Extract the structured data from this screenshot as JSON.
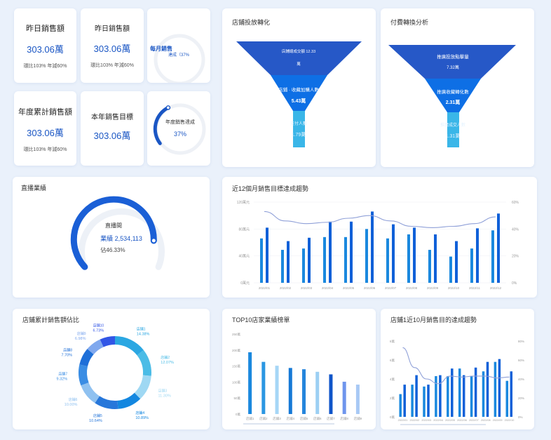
{
  "kpis": {
    "yesterday_sales": {
      "title": "昨日銷售額",
      "value": "303.06萬",
      "sub": "環比103% 年減60%"
    },
    "yesterday_sales2": {
      "title": "昨日銷售額",
      "value": "303.06萬",
      "sub": "環比103% 年減60%"
    },
    "monthly_sales": {
      "title": "每月銷售",
      "sub": "達成（37%"
    },
    "ytd_sales": {
      "title": "年度累計銷售額",
      "value": "303.06萬",
      "sub": "環比103% 年減60%"
    },
    "year_target": {
      "title": "本年銷售目標",
      "value": "303.06萬"
    },
    "year_achieve": {
      "title": "年度銷售達成",
      "value": "37%"
    }
  },
  "funnel1": {
    "title": "店鋪投放轉化",
    "l1a": "店鋪總成交額 12.33",
    "l1b": "萬",
    "l2a": "店鋪 · 收藏加購人數",
    "l2b": "5.43萬",
    "l3a": "支付人數",
    "l3b": "1.79萬"
  },
  "funnel2": {
    "title": "付費轉換分析",
    "l1a": "推廣投放點擊量",
    "l1b": "7.32萬",
    "l2a": "推廣收藏轉化數",
    "l2b": "2.31萬",
    "l3a": "推廣成交人數",
    "l3b": "1.31萬"
  },
  "live": {
    "title": "直播業績",
    "center_title": "直播間",
    "perf": "業績 2,534,113",
    "pct": "佔46.33%"
  },
  "trend12": {
    "title": "近12個月銷售目標達成趨勢"
  },
  "pie": {
    "title": "店鋪累計銷售額佔比"
  },
  "top10": {
    "title": "TOP10店家業績榜單"
  },
  "trend10": {
    "title": "店鋪1近10月銷售目的達成趨勢"
  },
  "chart_data": [
    {
      "type": "bar",
      "title": "近12個月銷售目標達成趨勢",
      "categories": [
        "2022/01",
        "2022/02",
        "2022/03",
        "2022/04",
        "2022/05",
        "2022/06",
        "2022/07",
        "2022/08",
        "2022/09",
        "2022/10",
        "2022/11",
        "2022/12"
      ],
      "y_ticks": [
        "0萬元",
        "40萬元",
        "80萬元",
        "120萬元"
      ],
      "y2_ticks": [
        "0%",
        "20%",
        "40%",
        "60%"
      ],
      "ylim": [
        0,
        120
      ],
      "y2lim": [
        0,
        60
      ],
      "series": [
        {
          "values": [
            66,
            49,
            51,
            68,
            68,
            80,
            66,
            72,
            49,
            39,
            51,
            78
          ]
        },
        {
          "values": [
            82,
            62,
            67,
            91,
            91,
            106,
            87,
            82,
            72,
            62,
            81,
            103
          ]
        },
        {
          "type": "line",
          "values": [
            53,
            46,
            44,
            45,
            48,
            50,
            46,
            42,
            41,
            42,
            44,
            49
          ]
        }
      ]
    },
    {
      "type": "pie",
      "title": "店鋪累計銷售額佔比",
      "labels": [
        "店鋪1",
        "店鋪2",
        "店鋪3",
        "店鋪4",
        "店鋪5",
        "店鋪6",
        "店鋪7",
        "店鋪8",
        "店鋪9",
        "店鋪10"
      ],
      "values": [
        14.38,
        12.07,
        11.3,
        10.89,
        10.64,
        10.0,
        9.32,
        7.7,
        6.98,
        6.73
      ],
      "value_labels": [
        "14.38%",
        "12.07%",
        "11.30%",
        "10.89%",
        "10.64%",
        "10.00%",
        "9.32%",
        "7.70%",
        "6.98%",
        "6.73%"
      ],
      "colors": [
        "#2ba7e2",
        "#4bbce6",
        "#9fd8f3",
        "#1387e0",
        "#2777da",
        "#8fc1f0",
        "#3a8de4",
        "#1e6fd8",
        "#7fa8ee",
        "#3256e6"
      ]
    },
    {
      "type": "bar",
      "title": "TOP10店家業績榜單",
      "categories": [
        "店鋪1",
        "店鋪2",
        "店鋪3",
        "店鋪4",
        "店鋪5",
        "店鋪6",
        "店鋪7",
        "店鋪8",
        "店鋪9"
      ],
      "y_ticks": [
        "0萬",
        "50萬",
        "100萬",
        "150萬",
        "200萬",
        "250萬"
      ],
      "ylim": [
        0,
        250
      ],
      "values": [
        193,
        163,
        151,
        144,
        140,
        132,
        124,
        101,
        92
      ],
      "colors": [
        "#1a88de",
        "#2a96e2",
        "#a6d6f6",
        "#1679d6",
        "#2585dc",
        "#9ccff3",
        "#0f55c9",
        "#6f95ed",
        "#a8c9f5"
      ]
    },
    {
      "type": "bar",
      "title": "店鋪1近10月銷售目的達成趨勢",
      "categories": [
        "2022/01",
        "2022/02",
        "2022/03",
        "2022/04",
        "2022/05",
        "2022/06",
        "2022/07",
        "2022/08",
        "2022/09",
        "2022/10"
      ],
      "y_ticks": [
        "0萬",
        "2萬",
        "4萬",
        "6萬",
        "8萬"
      ],
      "y2_ticks": [
        "0%",
        "20%",
        "40%",
        "60%",
        "80%"
      ],
      "ylim": [
        0,
        8
      ],
      "y2lim": [
        0,
        80
      ],
      "series": [
        {
          "values": [
            2.4,
            3.4,
            3.2,
            4.3,
            4.3,
            5.1,
            4.3,
            4.8,
            5.8,
            3.8
          ]
        },
        {
          "values": [
            3.4,
            4.4,
            3.4,
            4.4,
            5.1,
            4.4,
            5.2,
            5.8,
            6.1,
            4.8
          ]
        },
        {
          "type": "line",
          "values": [
            73,
            52,
            40,
            35,
            43,
            42,
            43,
            43,
            41,
            42
          ]
        }
      ]
    }
  ]
}
